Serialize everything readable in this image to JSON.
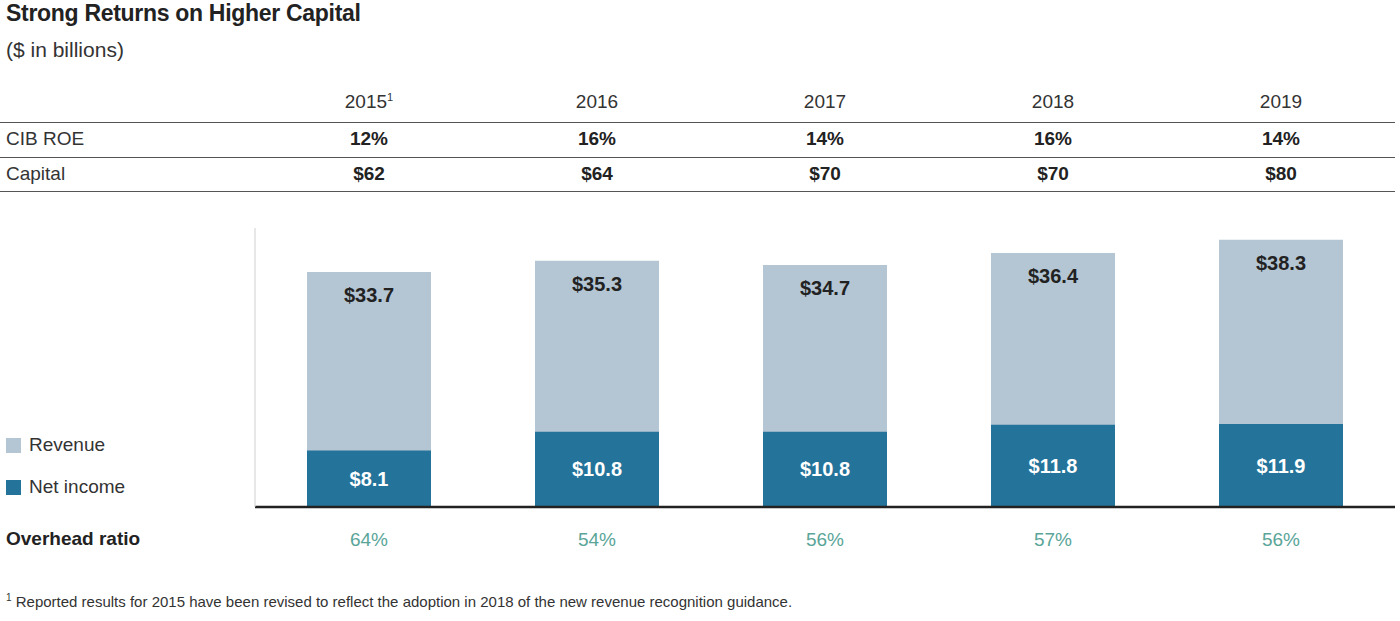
{
  "chart_data": {
    "type": "bar",
    "title": "Strong Returns on Higher Capital",
    "subtitle": "($ in billions)",
    "categories": [
      "2015",
      "2016",
      "2017",
      "2018",
      "2019"
    ],
    "category_footnotes": [
      "1",
      null,
      null,
      null,
      null
    ],
    "series": [
      {
        "name": "Revenue",
        "color": "#b4c5d3",
        "values": [
          33.7,
          35.3,
          34.7,
          36.4,
          38.3
        ],
        "value_labels": [
          "$33.7",
          "$35.3",
          "$34.7",
          "$36.4",
          "$38.3"
        ]
      },
      {
        "name": "Net income",
        "color": "#24739a",
        "values": [
          8.1,
          10.8,
          10.8,
          11.8,
          11.9
        ],
        "value_labels": [
          "$8.1",
          "$10.8",
          "$10.8",
          "$11.8",
          "$11.9"
        ]
      }
    ],
    "ylim": [
      0,
      40
    ],
    "tick_labels": false,
    "grid": false,
    "data_labels": true,
    "legend": "lower left",
    "table_rows": [
      {
        "label": "CIB ROE",
        "values": [
          12,
          16,
          14,
          16,
          14
        ],
        "value_labels": [
          "12%",
          "16%",
          "14%",
          "16%",
          "14%"
        ]
      },
      {
        "label": "Capital",
        "values": [
          62,
          64,
          70,
          70,
          80
        ],
        "value_labels": [
          "$62",
          "$64",
          "$70",
          "$70",
          "$80"
        ]
      }
    ],
    "footer_row": {
      "label": "Overhead ratio",
      "values": [
        64,
        54,
        56,
        57,
        56
      ],
      "value_labels": [
        "64%",
        "54%",
        "56%",
        "57%",
        "56%"
      ],
      "color": "#5aa598"
    },
    "footnote": {
      "marker": "1",
      "text": "Reported results for 2015 have been revised to reflect the adoption in 2018 of the new revenue recognition guidance."
    }
  }
}
